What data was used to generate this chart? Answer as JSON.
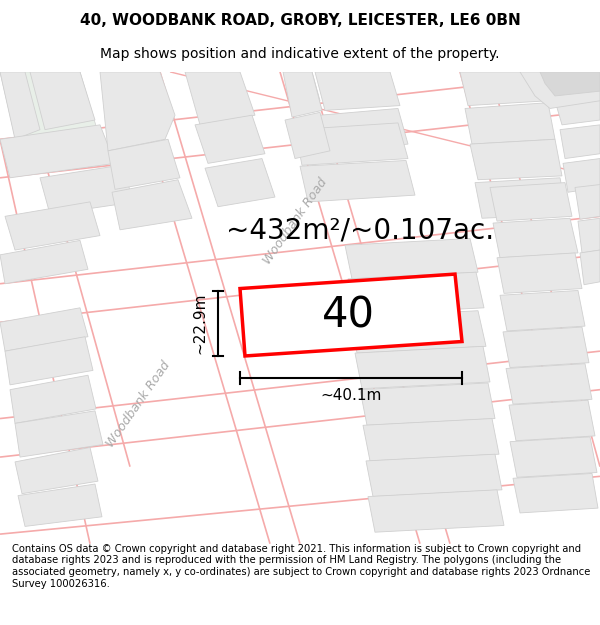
{
  "title_line1": "40, WOODBANK ROAD, GROBY, LEICESTER, LE6 0BN",
  "title_line2": "Map shows position and indicative extent of the property.",
  "area_label": "~432m²/~0.107ac.",
  "property_number": "40",
  "dim_width": "~40.1m",
  "dim_height": "~22.9m",
  "road_label1": "Woodbank Road",
  "road_label2": "Woodbank Road",
  "copyright_text": "Contains OS data © Crown copyright and database right 2021. This information is subject to Crown copyright and database rights 2023 and is reproduced with the permission of HM Land Registry. The polygons (including the associated geometry, namely x, y co-ordinates) are subject to Crown copyright and database rights 2023 Ordnance Survey 100026316.",
  "bg_color": "#ffffff",
  "map_bg": "#ffffff",
  "building_fill": "#e8e8e8",
  "building_edge": "#d0d0d0",
  "road_line_color": "#f5aaaa",
  "property_color": "#ff0000",
  "title_fontsize": 11,
  "subtitle_fontsize": 10,
  "area_fontsize": 20,
  "number_fontsize": 30,
  "dim_fontsize": 11,
  "road_fontsize": 9,
  "copyright_fontsize": 7.2
}
